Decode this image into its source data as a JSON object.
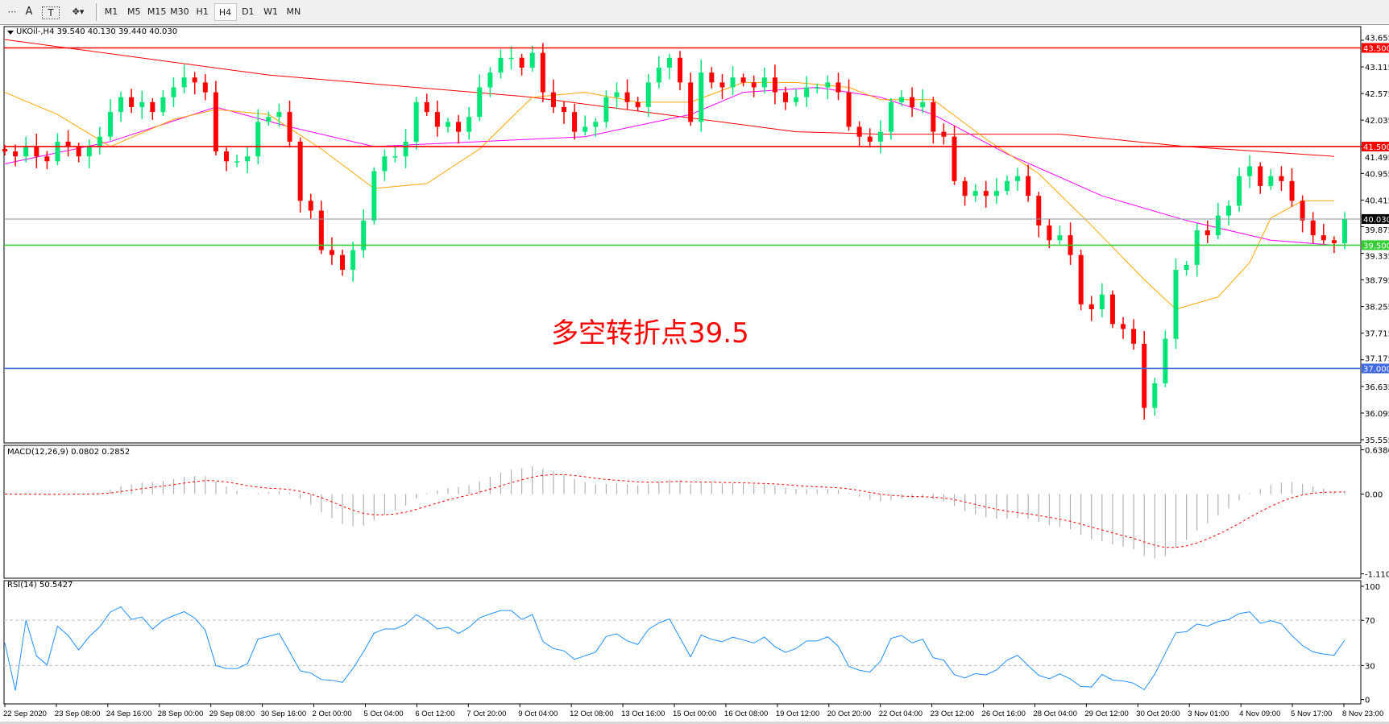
{
  "toolbar": {
    "tools": [
      {
        "icon": "period-separator-icon",
        "label": ""
      },
      {
        "icon": "text-icon",
        "label": "A"
      },
      {
        "icon": "text-label-icon",
        "label": "T"
      },
      {
        "icon": "arrows-icon",
        "label": "▾"
      }
    ],
    "timeframes": [
      "M1",
      "M5",
      "M15",
      "M30",
      "H1",
      "H4",
      "D1",
      "W1",
      "MN"
    ],
    "active_timeframe": "H4"
  },
  "chart_data": [
    {
      "type": "candlestick",
      "title": "UKOil-,H4  39.540 40.130 39.440 40.030",
      "symbol": "UKOil-",
      "timeframe": "H4",
      "ohlc_last": {
        "open": 39.54,
        "high": 40.13,
        "low": 39.44,
        "close": 40.03
      },
      "ylim": [
        35.555,
        43.655
      ],
      "y_ticks": [
        "43.655",
        "43.115",
        "42.575",
        "42.035",
        "41.495",
        "40.955",
        "40.415",
        "39.875",
        "39.335",
        "38.795",
        "38.255",
        "37.715",
        "37.175",
        "36.635",
        "36.095",
        "35.555"
      ],
      "x_ticks": [
        "22 Sep 2020",
        "23 Sep 08:00",
        "24 Sep 16:00",
        "28 Sep 00:00",
        "29 Sep 08:00",
        "30 Sep 16:00",
        "2 Oct 00:00",
        "5 Oct 04:00",
        "6 Oct 12:00",
        "7 Oct 20:00",
        "9 Oct 04:00",
        "12 Oct 08:00",
        "13 Oct 16:00",
        "15 Oct 00:00",
        "16 Oct 08:00",
        "19 Oct 12:00",
        "20 Oct 20:00",
        "22 Oct 04:00",
        "23 Oct 12:00",
        "26 Oct 16:00",
        "28 Oct 04:00",
        "29 Oct 12:00",
        "30 Oct 20:00",
        "3 Nov 01:00",
        "4 Nov 09:00",
        "5 Nov 17:00",
        "8 Nov 23:00"
      ],
      "closes": [
        41.4,
        41.3,
        41.5,
        41.3,
        41.2,
        41.6,
        41.5,
        41.3,
        41.5,
        41.7,
        42.2,
        42.5,
        42.3,
        42.4,
        42.2,
        42.5,
        42.7,
        42.9,
        42.8,
        42.6,
        41.4,
        41.2,
        41.2,
        41.3,
        42.0,
        42.1,
        42.2,
        41.6,
        40.4,
        40.2,
        39.4,
        39.3,
        39.0,
        39.4,
        40.0,
        41.0,
        41.3,
        41.3,
        41.6,
        42.4,
        42.2,
        41.9,
        42.0,
        41.8,
        42.1,
        42.7,
        43.0,
        43.3,
        43.3,
        43.1,
        43.4,
        42.6,
        42.3,
        42.2,
        41.8,
        41.9,
        42.0,
        42.5,
        42.6,
        42.4,
        42.3,
        42.8,
        43.1,
        43.3,
        42.8,
        42.0,
        43.0,
        42.8,
        42.7,
        42.9,
        42.8,
        42.7,
        42.9,
        42.6,
        42.4,
        42.5,
        42.7,
        42.7,
        42.8,
        42.6,
        41.9,
        41.7,
        41.6,
        41.8,
        42.4,
        42.5,
        42.3,
        42.4,
        41.8,
        41.7,
        40.8,
        40.5,
        40.6,
        40.5,
        40.6,
        40.8,
        40.9,
        40.5,
        39.9,
        39.6,
        39.7,
        39.3,
        38.3,
        38.2,
        38.5,
        37.9,
        37.8,
        37.5,
        36.2,
        36.7,
        37.6,
        39.0,
        39.1,
        39.8,
        39.7,
        40.1,
        40.3,
        40.9,
        41.1,
        40.7,
        40.9,
        40.8,
        40.4,
        40.0,
        39.7,
        39.6,
        39.54,
        40.03
      ],
      "moving_averages": [
        {
          "color": "#ff0000",
          "points": [
            [
              0,
              43.67
            ],
            [
              25,
              42.95
            ],
            [
              50,
              42.5
            ],
            [
              75,
              41.8
            ],
            [
              83,
              41.75
            ],
            [
              100,
              41.75
            ],
            [
              112,
              41.5
            ],
            [
              126,
              41.3
            ]
          ]
        },
        {
          "color": "#ff00ff",
          "points": [
            [
              0,
              41.15
            ],
            [
              10,
              41.6
            ],
            [
              20,
              42.3
            ],
            [
              27,
              41.9
            ],
            [
              35,
              41.5
            ],
            [
              45,
              41.6
            ],
            [
              55,
              41.7
            ],
            [
              65,
              42.15
            ],
            [
              70,
              42.6
            ],
            [
              77,
              42.7
            ],
            [
              83,
              42.5
            ],
            [
              88,
              42.15
            ],
            [
              95,
              41.35
            ],
            [
              104,
              40.5
            ],
            [
              112,
              40.0
            ],
            [
              120,
              39.6
            ],
            [
              126,
              39.5
            ]
          ]
        },
        {
          "color": "#ffa500",
          "points": [
            [
              0,
              42.6
            ],
            [
              5,
              42.15
            ],
            [
              10,
              41.5
            ],
            [
              16,
              42.05
            ],
            [
              20,
              42.25
            ],
            [
              25,
              42.15
            ],
            [
              30,
              41.45
            ],
            [
              35,
              40.65
            ],
            [
              40,
              40.75
            ],
            [
              45,
              41.45
            ],
            [
              50,
              42.5
            ],
            [
              55,
              42.6
            ],
            [
              60,
              42.4
            ],
            [
              65,
              42.4
            ],
            [
              70,
              42.8
            ],
            [
              75,
              42.8
            ],
            [
              80,
              42.7
            ],
            [
              83,
              42.45
            ],
            [
              88,
              42.45
            ],
            [
              93,
              41.65
            ],
            [
              98,
              40.95
            ],
            [
              103,
              39.9
            ],
            [
              108,
              38.8
            ],
            [
              111,
              38.2
            ],
            [
              115,
              38.45
            ],
            [
              118,
              39.15
            ],
            [
              120,
              40.05
            ],
            [
              123,
              40.4
            ],
            [
              126,
              40.4
            ]
          ]
        }
      ],
      "horizontal_levels": [
        {
          "value": 43.5,
          "label": "43.500",
          "color": "#ff0000"
        },
        {
          "value": 41.5,
          "label": "41.500",
          "color": "#ff0000"
        },
        {
          "value": 40.03,
          "label": "40.030",
          "color": "#000000",
          "line_color": "#8a9aa6"
        },
        {
          "value": 39.5,
          "label": "39.500",
          "color": "#32cd32"
        },
        {
          "value": 37.0,
          "label": "37.000",
          "color": "#4169e1"
        }
      ],
      "annotation": "多空转折点39.5",
      "bull_color": "#00e676",
      "bear_color": "#ff0000"
    },
    {
      "type": "macd",
      "title": "MACD(12,26,9) 0.0802 0.2852",
      "y_ticks": [
        "0.6386",
        "0.00",
        "-1.1104"
      ],
      "ylim": [
        -1.1104,
        0.6386
      ]
    },
    {
      "type": "rsi",
      "title": "RSI(14) 50.5427",
      "y_ticks": [
        "100",
        "70",
        "30",
        "0"
      ],
      "levels": [
        70,
        30
      ],
      "ylim": [
        0,
        100
      ],
      "color": "#1e90ff"
    }
  ]
}
